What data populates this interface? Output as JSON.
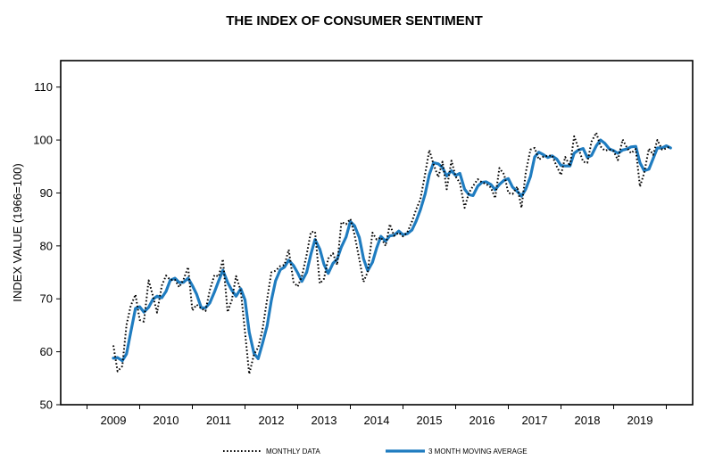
{
  "chart_data": {
    "type": "line",
    "title": "THE INDEX OF CONSUMER SENTIMENT",
    "xlabel": "",
    "ylabel": "INDEX VALUE (1966=100)",
    "x_ticks": [
      "2009",
      "2010",
      "2011",
      "2012",
      "2013",
      "2014",
      "2015",
      "2016",
      "2017",
      "2018",
      "2019"
    ],
    "y_ticks": [
      "50",
      "60",
      "70",
      "80",
      "90",
      "100",
      "110"
    ],
    "xlim": [
      2008,
      2020
    ],
    "ylim": [
      50,
      115
    ],
    "grid": false,
    "legend_position": "bottom",
    "x": [
      2009.0,
      2009.08,
      2009.17,
      2009.25,
      2009.33,
      2009.42,
      2009.5,
      2009.58,
      2009.67,
      2009.75,
      2009.83,
      2009.92,
      2010.0,
      2010.08,
      2010.17,
      2010.25,
      2010.33,
      2010.42,
      2010.5,
      2010.58,
      2010.67,
      2010.75,
      2010.83,
      2010.92,
      2011.0,
      2011.08,
      2011.17,
      2011.25,
      2011.33,
      2011.42,
      2011.5,
      2011.58,
      2011.67,
      2011.75,
      2011.83,
      2011.92,
      2012.0,
      2012.08,
      2012.17,
      2012.25,
      2012.33,
      2012.42,
      2012.5,
      2012.58,
      2012.67,
      2012.75,
      2012.83,
      2012.92,
      2013.0,
      2013.08,
      2013.17,
      2013.25,
      2013.33,
      2013.42,
      2013.5,
      2013.58,
      2013.67,
      2013.75,
      2013.83,
      2013.92,
      2014.0,
      2014.08,
      2014.17,
      2014.25,
      2014.33,
      2014.42,
      2014.5,
      2014.58,
      2014.67,
      2014.75,
      2014.83,
      2014.92,
      2015.0,
      2015.08,
      2015.17,
      2015.25,
      2015.33,
      2015.42,
      2015.5,
      2015.58,
      2015.67,
      2015.75,
      2015.83,
      2015.92,
      2016.0,
      2016.08,
      2016.17,
      2016.25,
      2016.33,
      2016.42,
      2016.5,
      2016.58,
      2016.67,
      2016.75,
      2016.83,
      2016.92,
      2017.0,
      2017.08,
      2017.17,
      2017.25,
      2017.33,
      2017.42,
      2017.5,
      2017.58,
      2017.67,
      2017.75,
      2017.83,
      2017.92,
      2018.0,
      2018.08,
      2018.17,
      2018.25,
      2018.33,
      2018.42,
      2018.5,
      2018.58,
      2018.67,
      2018.75,
      2018.83,
      2018.92,
      2019.0,
      2019.08,
      2019.17,
      2019.25,
      2019.33,
      2019.42,
      2019.5,
      2019.58
    ],
    "series": [
      {
        "name": "MONTHLY DATA",
        "style": "dotted",
        "color": "#000000",
        "values": [
          61.2,
          56.3,
          57.3,
          65.1,
          68.7,
          70.8,
          66.0,
          65.7,
          73.5,
          70.6,
          67.4,
          72.5,
          74.4,
          73.6,
          73.6,
          72.2,
          73.6,
          76.0,
          67.8,
          68.9,
          68.2,
          67.7,
          71.6,
          74.5,
          74.2,
          77.5,
          67.5,
          69.8,
          74.3,
          71.5,
          63.7,
          55.8,
          59.5,
          60.8,
          64.1,
          69.9,
          75.0,
          75.3,
          76.2,
          76.4,
          79.3,
          73.2,
          72.3,
          74.3,
          78.3,
          82.6,
          82.7,
          72.9,
          73.8,
          77.6,
          78.6,
          76.4,
          84.5,
          84.1,
          85.1,
          82.1,
          77.5,
          73.2,
          75.1,
          82.5,
          81.2,
          81.6,
          80.0,
          84.1,
          81.9,
          82.5,
          81.8,
          82.5,
          84.6,
          86.9,
          88.8,
          93.6,
          98.1,
          95.4,
          93.0,
          95.9,
          90.7,
          96.1,
          93.1,
          91.9,
          87.2,
          90.0,
          91.3,
          92.6,
          92.0,
          91.7,
          91.0,
          89.0,
          94.7,
          93.5,
          90.0,
          89.8,
          91.2,
          87.2,
          93.8,
          98.2,
          98.5,
          96.3,
          96.9,
          97.0,
          97.1,
          95.0,
          93.4,
          96.8,
          95.1,
          100.7,
          98.5,
          95.9,
          95.7,
          99.7,
          101.4,
          98.8,
          98.0,
          98.2,
          97.9,
          96.2,
          100.1,
          98.6,
          97.5,
          98.3,
          91.2,
          93.8,
          98.4,
          97.2,
          100.0,
          98.2,
          98.4,
          98.9
        ]
      },
      {
        "name": "3 MONTH MOVING AVERAGE",
        "style": "solid",
        "color": "#1f7cc0",
        "values": [
          58.8,
          58.9,
          58.3,
          59.6,
          63.7,
          68.2,
          68.5,
          67.5,
          68.4,
          69.9,
          70.5,
          70.2,
          71.4,
          73.5,
          73.9,
          73.1,
          73.1,
          73.9,
          72.5,
          70.9,
          68.3,
          68.3,
          69.2,
          71.3,
          73.4,
          75.4,
          73.1,
          71.6,
          70.5,
          71.9,
          69.8,
          63.7,
          59.7,
          58.7,
          61.5,
          64.9,
          69.7,
          73.4,
          75.5,
          76.0,
          77.3,
          76.3,
          74.9,
          73.3,
          75.0,
          78.4,
          81.2,
          79.4,
          76.5,
          74.8,
          76.7,
          77.5,
          79.8,
          81.7,
          84.6,
          83.8,
          81.6,
          77.6,
          75.3,
          76.9,
          79.6,
          81.8,
          80.9,
          81.9,
          82.0,
          82.8,
          82.1,
          82.3,
          83.0,
          84.7,
          86.8,
          89.8,
          93.5,
          95.7,
          95.5,
          94.8,
          93.2,
          94.2,
          93.3,
          93.7,
          90.7,
          89.7,
          89.5,
          91.3,
          92.0,
          92.1,
          91.6,
          90.6,
          91.6,
          92.4,
          92.7,
          91.1,
          90.3,
          89.4,
          90.7,
          93.1,
          96.8,
          97.7,
          97.2,
          96.7,
          97.0,
          96.4,
          95.2,
          95.1,
          95.1,
          97.5,
          98.1,
          98.4,
          96.7,
          97.1,
          98.9,
          100.0,
          99.4,
          98.3,
          98.0,
          97.5,
          98.1,
          98.3,
          98.7,
          98.8,
          95.7,
          94.2,
          94.5,
          96.5,
          98.5,
          98.5,
          98.9,
          98.5
        ]
      }
    ]
  }
}
